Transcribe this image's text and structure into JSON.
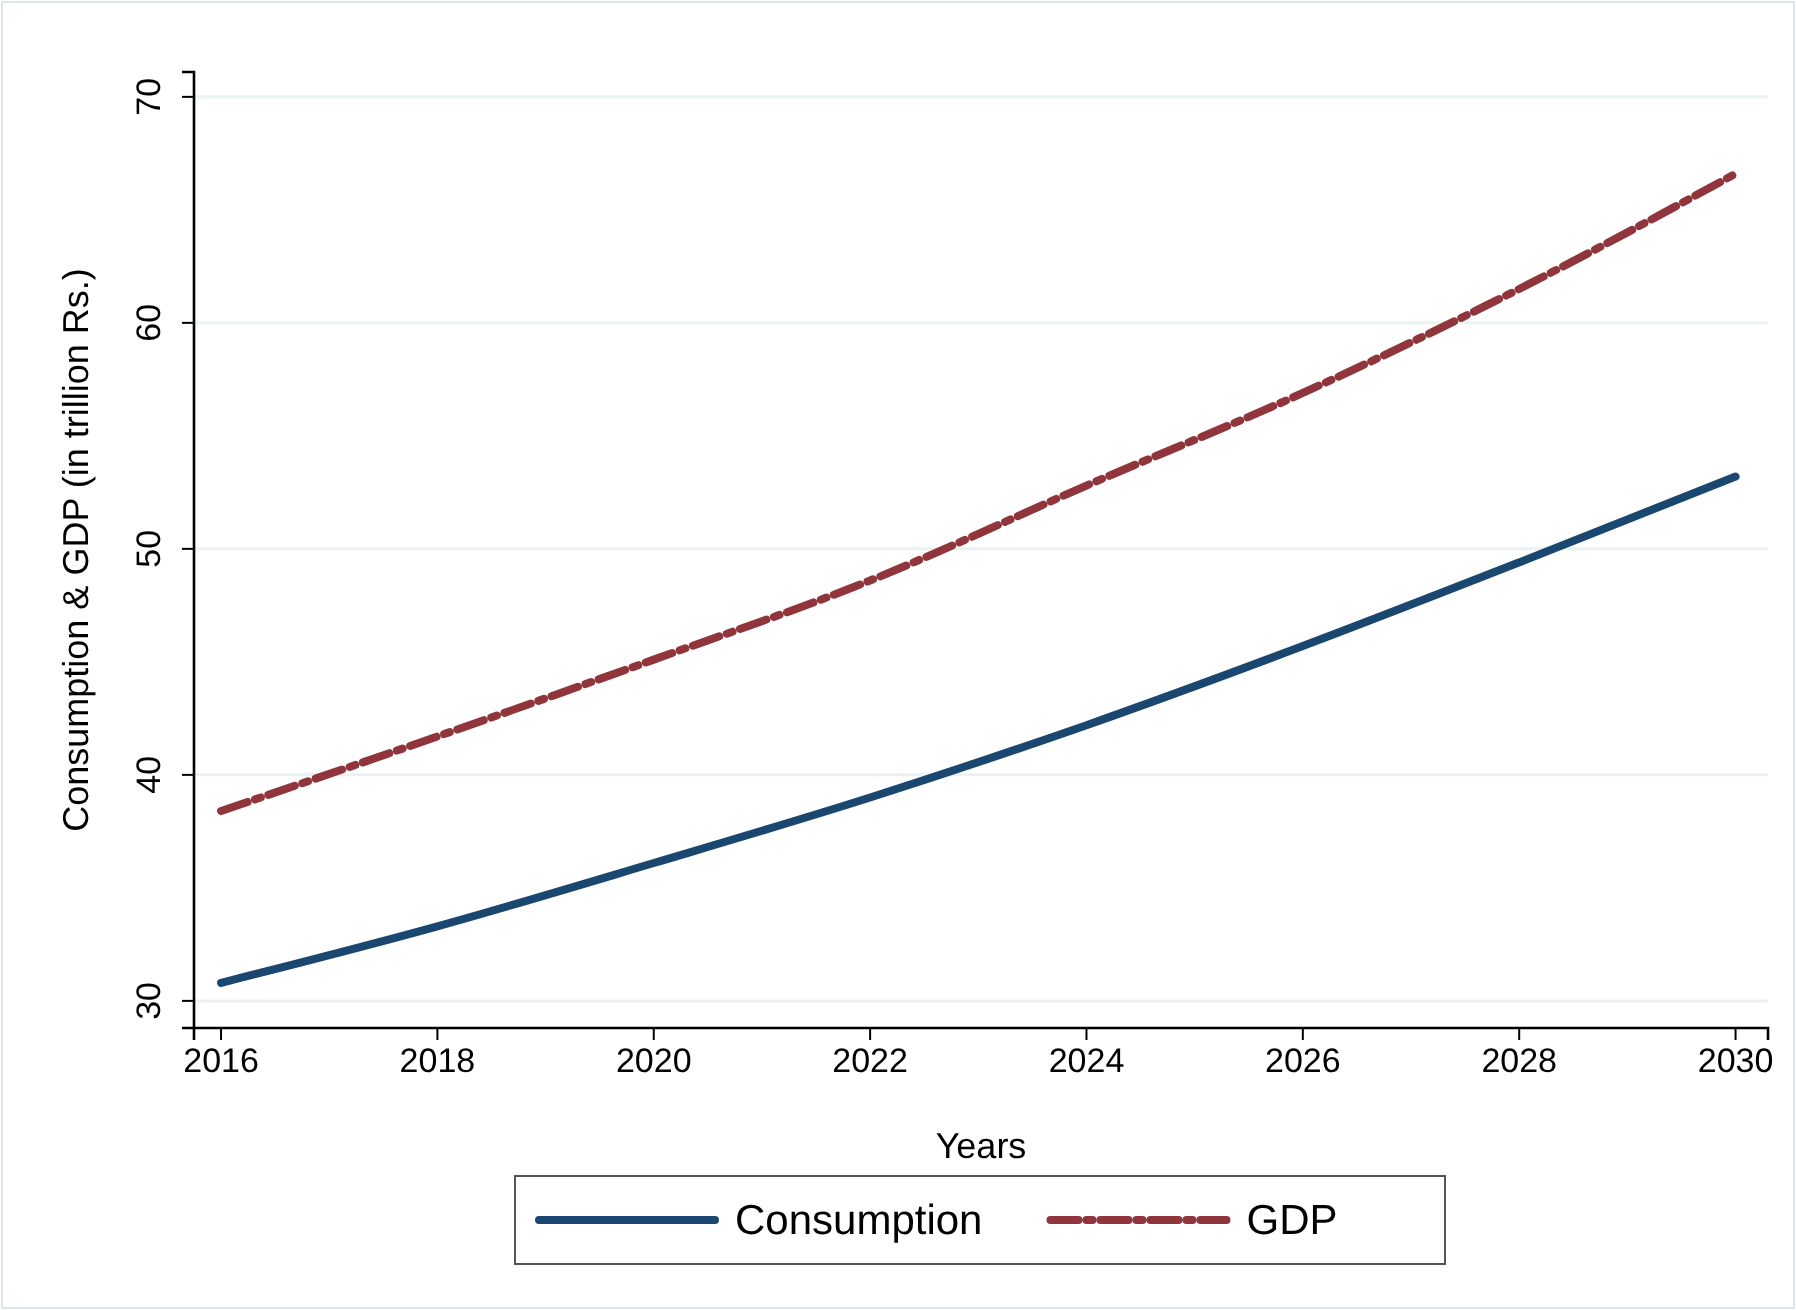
{
  "chart_data": {
    "type": "line",
    "xlabel": "Years",
    "ylabel": "Consumption & GDP (in trillion Rs.)",
    "x": [
      2016,
      2018,
      2020,
      2022,
      2024,
      2026,
      2028,
      2030
    ],
    "series": [
      {
        "name": "Consumption",
        "color": "#1a476f",
        "values": [
          30.8,
          33.3,
          36.1,
          39.0,
          42.2,
          45.7,
          49.4,
          53.2
        ],
        "line_style": "solid"
      },
      {
        "name": "GDP",
        "color": "#90353b",
        "values": [
          38.4,
          41.7,
          45.1,
          48.6,
          52.8,
          56.9,
          61.5,
          66.6
        ],
        "line_style": "dashdot"
      }
    ],
    "xlim": [
      2015.75,
      2030.3
    ],
    "ylim": [
      28.8,
      71.1
    ],
    "xticks": [
      2016,
      2018,
      2020,
      2022,
      2024,
      2026,
      2028,
      2030
    ],
    "yticks": [
      30,
      40,
      50,
      60,
      70
    ],
    "grid": "y",
    "legend": "bottom",
    "marker": "none"
  }
}
